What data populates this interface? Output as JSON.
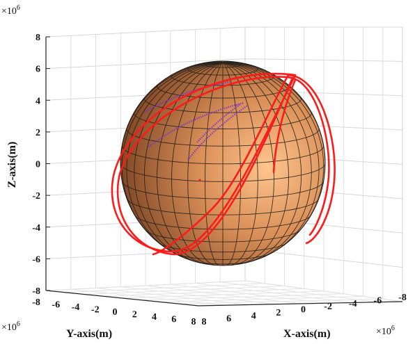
{
  "chart_data": {
    "type": "3d-line",
    "zlabel": "Z-axis(m)",
    "ylabel": "Y-axis(m)",
    "xlabel": "X-axis(m)",
    "exponent_base": "×10",
    "exponent_power": "6",
    "z_ticks": [
      "8",
      "6",
      "4",
      "2",
      "0",
      "-2",
      "-4",
      "-6",
      "-8"
    ],
    "y_ticks": [
      "-8",
      "-6",
      "-4",
      "-2",
      "0",
      "2",
      "4",
      "6",
      "8"
    ],
    "x_ticks": [
      "8",
      "6",
      "4",
      "2",
      "0",
      "-2",
      "-4",
      "-6",
      "-8"
    ],
    "zlim": [
      -8000000,
      8000000
    ],
    "ylim": [
      -8000000,
      8000000
    ],
    "xlim": [
      -8000000,
      8000000
    ],
    "grid": true,
    "sphere": {
      "radius": 6371000,
      "color": "#c9814a",
      "mesh_color": "#1a1a1a"
    },
    "series": [
      {
        "kind": "orbit",
        "color": "#ff1a1a"
      },
      {
        "kind": "ground-track",
        "color": "#7a35c8"
      }
    ]
  }
}
